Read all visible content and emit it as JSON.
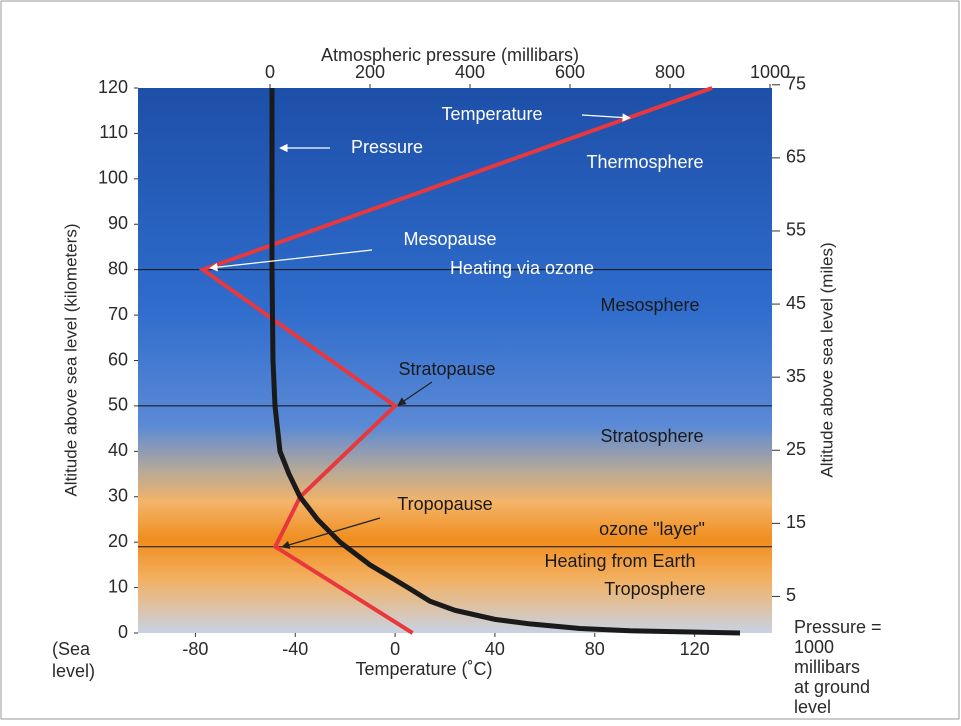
{
  "chart_data": {
    "type": "line",
    "x_label": "Temperature (˚C)",
    "x2_label": "Atmospheric pressure (millibars)",
    "y_label": "Altitude above sea level (kilometers)",
    "y2_label": "Altitude above sea level (miles)",
    "xlim": [
      -103,
      151
    ],
    "xticks": [
      -80,
      -40,
      0,
      40,
      80,
      120
    ],
    "x2lim": [
      -264,
      1004
    ],
    "x2ticks": [
      0,
      200,
      400,
      600,
      800,
      1000
    ],
    "ylim": [
      0,
      120
    ],
    "yticks": [
      0,
      10,
      20,
      30,
      40,
      50,
      60,
      70,
      80,
      90,
      100,
      110,
      120
    ],
    "y2lim": [
      0,
      74.56
    ],
    "y2ticks": [
      5,
      15,
      25,
      35,
      45,
      55,
      65,
      75
    ],
    "grid": false,
    "series": [
      {
        "name": "Temperature",
        "color": "#e8383d",
        "x": [
          7,
          -48,
          -38,
          0,
          -77,
          127
        ],
        "y": [
          0,
          19,
          30,
          50,
          80,
          120
        ]
      },
      {
        "name": "Pressure",
        "color": "#1a1a1a",
        "axis": "x2",
        "x": [
          940,
          720,
          620,
          520,
          450,
          370,
          320,
          276,
          200,
          140,
          95,
          60,
          38,
          20,
          10,
          6,
          4,
          4
        ],
        "y": [
          0,
          0.5,
          1,
          2,
          3,
          5,
          7,
          10,
          15,
          20,
          25,
          30,
          35,
          40,
          50,
          60,
          80,
          120
        ]
      }
    ],
    "reference_lines": [
      19,
      50,
      80
    ],
    "annotations": [
      "Thermosphere",
      "Mesopause",
      "Heating via ozone",
      "Mesosphere",
      "Stratopause",
      "Stratosphere",
      "Tropopause",
      "ozone \"layer\"",
      "Heating from Earth",
      "Troposphere"
    ],
    "sea_level_label": [
      "(Sea",
      "level)"
    ],
    "ground_pressure_note": [
      "Pressure =",
      "1000",
      "millibars",
      "at ground",
      "level"
    ]
  }
}
